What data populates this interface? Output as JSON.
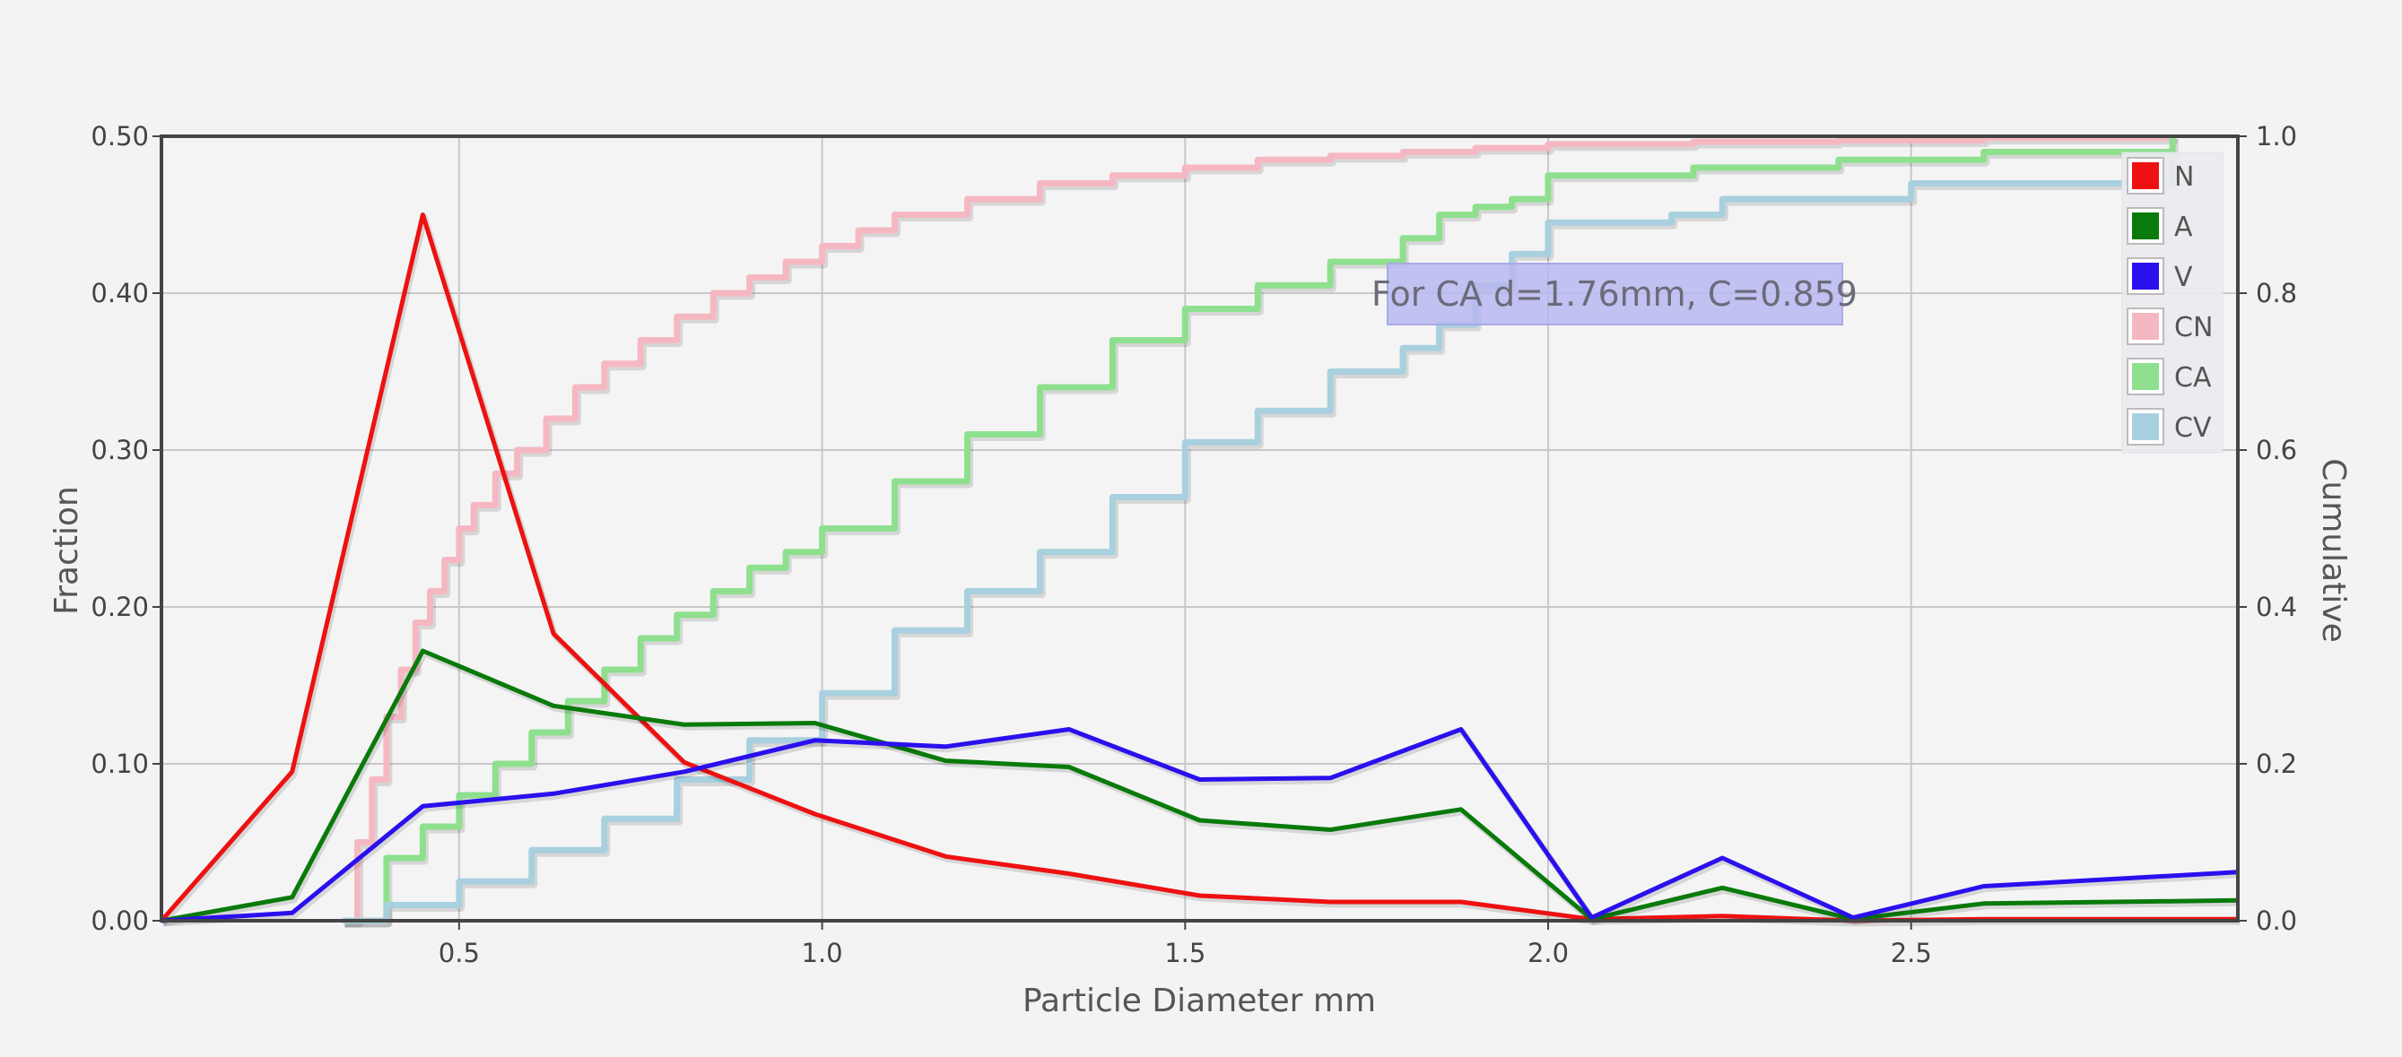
{
  "chart_data": {
    "type": "line",
    "xlabel": "Particle Diameter mm",
    "ylabel": "Fraction",
    "y2label": "Cumulative",
    "xlim": [
      0.09,
      2.95
    ],
    "ylim": [
      0,
      0.5
    ],
    "y2lim": [
      0,
      1.0
    ],
    "x_ticks": [
      0.5,
      1.0,
      1.5,
      2.0,
      2.5
    ],
    "x_tick_labels": [
      "0.5",
      "1.0",
      "1.5",
      "2.0",
      "2.5"
    ],
    "y_ticks": [
      0,
      0.1,
      0.2,
      0.3,
      0.4,
      0.5
    ],
    "y_tick_labels": [
      "0.00",
      "0.10",
      "0.20",
      "0.30",
      "0.40",
      "0.50"
    ],
    "y2_ticks": [
      0,
      0.2,
      0.4,
      0.6,
      0.8,
      1.0
    ],
    "y2_tick_labels": [
      "0.0",
      "0.2",
      "0.4",
      "0.6",
      "0.8",
      "1.0"
    ],
    "grid": true,
    "legend_position": "top-right",
    "series": [
      {
        "name": "N",
        "axis": "left",
        "color": "#ee1111",
        "x": [
          0.09,
          0.27,
          0.45,
          0.63,
          0.81,
          0.99,
          1.17,
          1.34,
          1.52,
          1.7,
          1.88,
          2.06,
          2.24,
          2.42,
          2.6,
          2.95
        ],
        "y": [
          0.0,
          0.095,
          0.45,
          0.183,
          0.101,
          0.068,
          0.041,
          0.03,
          0.016,
          0.012,
          0.012,
          0.001,
          0.003,
          0.0,
          0.001,
          0.001
        ]
      },
      {
        "name": "A",
        "axis": "left",
        "color": "#0a7a0a",
        "x": [
          0.09,
          0.27,
          0.45,
          0.63,
          0.81,
          0.99,
          1.17,
          1.34,
          1.52,
          1.7,
          1.88,
          2.06,
          2.24,
          2.42,
          2.6,
          2.95
        ],
        "y": [
          0.0,
          0.015,
          0.172,
          0.137,
          0.125,
          0.126,
          0.102,
          0.098,
          0.064,
          0.058,
          0.071,
          0.001,
          0.021,
          0.001,
          0.011,
          0.013
        ]
      },
      {
        "name": "V",
        "axis": "left",
        "color": "#2a10ee",
        "x": [
          0.09,
          0.27,
          0.45,
          0.63,
          0.81,
          0.99,
          1.17,
          1.34,
          1.52,
          1.7,
          1.88,
          2.06,
          2.24,
          2.42,
          2.6,
          2.95
        ],
        "y": [
          0.0,
          0.005,
          0.073,
          0.081,
          0.095,
          0.115,
          0.111,
          0.122,
          0.09,
          0.091,
          0.122,
          0.002,
          0.04,
          0.002,
          0.022,
          0.031
        ]
      },
      {
        "name": "CN",
        "axis": "right",
        "color": "#f5b8c2",
        "step": true,
        "x": [
          0.34,
          0.36,
          0.38,
          0.4,
          0.42,
          0.44,
          0.46,
          0.48,
          0.5,
          0.52,
          0.55,
          0.58,
          0.62,
          0.66,
          0.7,
          0.75,
          0.8,
          0.85,
          0.9,
          0.95,
          1.0,
          1.05,
          1.1,
          1.2,
          1.3,
          1.4,
          1.5,
          1.6,
          1.7,
          1.8,
          1.9,
          2.0,
          2.2,
          2.4,
          2.6,
          2.86
        ],
        "y": [
          0.0,
          0.1,
          0.18,
          0.26,
          0.32,
          0.38,
          0.42,
          0.46,
          0.5,
          0.53,
          0.57,
          0.6,
          0.64,
          0.68,
          0.71,
          0.74,
          0.77,
          0.8,
          0.82,
          0.84,
          0.86,
          0.88,
          0.9,
          0.92,
          0.94,
          0.95,
          0.96,
          0.97,
          0.975,
          0.98,
          0.985,
          0.99,
          0.993,
          0.995,
          0.998,
          1.0
        ]
      },
      {
        "name": "CA",
        "axis": "right",
        "color": "#8ee08e",
        "step": true,
        "x": [
          0.34,
          0.4,
          0.45,
          0.5,
          0.55,
          0.6,
          0.65,
          0.7,
          0.75,
          0.8,
          0.85,
          0.9,
          0.95,
          1.0,
          1.1,
          1.2,
          1.3,
          1.4,
          1.5,
          1.6,
          1.7,
          1.8,
          1.85,
          1.9,
          1.95,
          2.0,
          2.2,
          2.4,
          2.6,
          2.86
        ],
        "y": [
          0.0,
          0.08,
          0.12,
          0.16,
          0.2,
          0.24,
          0.28,
          0.32,
          0.36,
          0.39,
          0.42,
          0.45,
          0.47,
          0.5,
          0.56,
          0.62,
          0.68,
          0.74,
          0.78,
          0.81,
          0.84,
          0.87,
          0.9,
          0.91,
          0.92,
          0.95,
          0.96,
          0.97,
          0.98,
          1.0
        ]
      },
      {
        "name": "CV",
        "axis": "right",
        "color": "#a8d0de",
        "step": true,
        "x": [
          0.34,
          0.4,
          0.5,
          0.6,
          0.7,
          0.8,
          0.9,
          1.0,
          1.1,
          1.2,
          1.3,
          1.4,
          1.5,
          1.6,
          1.7,
          1.8,
          1.85,
          1.9,
          1.95,
          2.0,
          2.17,
          2.24,
          2.5,
          2.86
        ],
        "y": [
          0.0,
          0.02,
          0.05,
          0.09,
          0.13,
          0.18,
          0.23,
          0.29,
          0.37,
          0.42,
          0.47,
          0.54,
          0.61,
          0.65,
          0.7,
          0.73,
          0.76,
          0.81,
          0.85,
          0.89,
          0.9,
          0.92,
          0.94,
          0.97
        ]
      }
    ],
    "annotation": {
      "text": "For CA d=1.76mm, C=0.859"
    }
  }
}
